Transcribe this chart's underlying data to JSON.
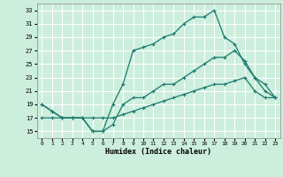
{
  "xlabel": "Humidex (Indice chaleur)",
  "background_color": "#cceedd",
  "grid_color": "#ffffff",
  "line_color": "#1a7a6e",
  "xlim": [
    -0.5,
    23.5
  ],
  "ylim": [
    14.0,
    34.0
  ],
  "xticks": [
    0,
    1,
    2,
    3,
    4,
    5,
    6,
    7,
    8,
    9,
    10,
    11,
    12,
    13,
    14,
    15,
    16,
    17,
    18,
    19,
    20,
    21,
    22,
    23
  ],
  "yticks": [
    15,
    17,
    19,
    21,
    23,
    25,
    27,
    29,
    31,
    33
  ],
  "line1_x": [
    0,
    1,
    2,
    3,
    4,
    5,
    6,
    7,
    8,
    9,
    10,
    11,
    12,
    13,
    14,
    15,
    16,
    17,
    18,
    19,
    20,
    21,
    22,
    23
  ],
  "line1_y": [
    19,
    18,
    17,
    17,
    17,
    15,
    15,
    19,
    22,
    27,
    27.5,
    28,
    29,
    29.5,
    31,
    32,
    32,
    33,
    29,
    28,
    25,
    23,
    21,
    20
  ],
  "line2_x": [
    0,
    1,
    2,
    3,
    4,
    5,
    6,
    7,
    8,
    9,
    10,
    11,
    12,
    13,
    14,
    15,
    16,
    17,
    18,
    19,
    20,
    21,
    22,
    23
  ],
  "line2_y": [
    17,
    17,
    17,
    17,
    17,
    17,
    17,
    17,
    17.5,
    18,
    18.5,
    19,
    19.5,
    20,
    20.5,
    21,
    21.5,
    22,
    22,
    22.5,
    23,
    21,
    20,
    20
  ],
  "line3_x": [
    0,
    1,
    2,
    3,
    4,
    5,
    6,
    7,
    8,
    9,
    10,
    11,
    12,
    13,
    14,
    15,
    16,
    17,
    18,
    19,
    20,
    21,
    22,
    23
  ],
  "line3_y": [
    19,
    18,
    17,
    17,
    17,
    15,
    15,
    16,
    19,
    20,
    20,
    21,
    22,
    22,
    23,
    24,
    25,
    26,
    26,
    27,
    25.5,
    23,
    22,
    20
  ]
}
